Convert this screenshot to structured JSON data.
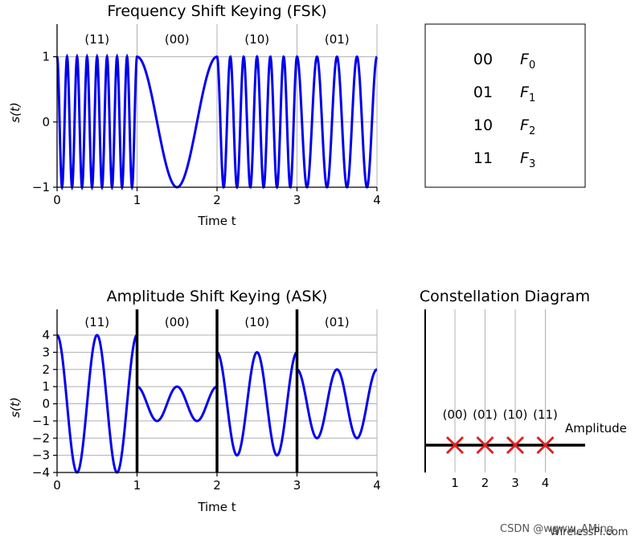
{
  "chart_data": [
    {
      "type": "line",
      "title": "Frequency Shift Keying (FSK)",
      "xlabel": "Time t",
      "ylabel": "s(t)",
      "xlim": [
        0,
        4
      ],
      "ylim": [
        -1,
        1.5
      ],
      "xticks": [
        "0",
        "1",
        "2",
        "3",
        "4"
      ],
      "yticks": [
        "−1",
        "0",
        "1"
      ],
      "grid": true,
      "segments": [
        {
          "label": "(11)",
          "t_start": 0,
          "t_end": 1,
          "amplitude": 1,
          "cycles": 8
        },
        {
          "label": "(00)",
          "t_start": 1,
          "t_end": 2,
          "amplitude": 1,
          "cycles": 1
        },
        {
          "label": "(10)",
          "t_start": 2,
          "t_end": 3,
          "amplitude": 1,
          "cycles": 6
        },
        {
          "label": "(01)",
          "t_start": 3,
          "t_end": 4,
          "amplitude": 1,
          "cycles": 4
        }
      ],
      "line_color": "#0000ee"
    },
    {
      "type": "table",
      "rows": [
        {
          "bits": "00",
          "sym": "F",
          "sub": "0"
        },
        {
          "bits": "01",
          "sym": "F",
          "sub": "1"
        },
        {
          "bits": "10",
          "sym": "F",
          "sub": "2"
        },
        {
          "bits": "11",
          "sym": "F",
          "sub": "3"
        }
      ]
    },
    {
      "type": "line",
      "title": "Amplitude Shift Keying (ASK)",
      "xlabel": "Time t",
      "ylabel": "s(t)",
      "xlim": [
        0,
        4
      ],
      "ylim": [
        -4,
        5.5
      ],
      "xticks": [
        "0",
        "1",
        "2",
        "3",
        "4"
      ],
      "yticks": [
        "−4",
        "−3",
        "−2",
        "−1",
        "0",
        "1",
        "2",
        "3",
        "4"
      ],
      "grid": true,
      "segments": [
        {
          "label": "(11)",
          "t_start": 0,
          "t_end": 1,
          "amplitude": 4,
          "cycles": 2
        },
        {
          "label": "(00)",
          "t_start": 1,
          "t_end": 2,
          "amplitude": 1,
          "cycles": 2
        },
        {
          "label": "(10)",
          "t_start": 2,
          "t_end": 3,
          "amplitude": 3,
          "cycles": 2
        },
        {
          "label": "(01)",
          "t_start": 3,
          "t_end": 4,
          "amplitude": 2,
          "cycles": 2
        }
      ],
      "line_color": "#0000ee"
    },
    {
      "type": "scatter",
      "title": "Constellation Diagram",
      "xlabel": "Amplitude",
      "x": [
        1,
        2,
        3,
        4
      ],
      "y": [
        0,
        0,
        0,
        0
      ],
      "point_labels": [
        "(00)",
        "(01)",
        "(10)",
        "(11)"
      ],
      "xticks": [
        "1",
        "2",
        "3",
        "4"
      ],
      "marker": "x",
      "marker_color": "#dd2222"
    }
  ],
  "watermark": {
    "csdn": "CSDN @wgww_AMing",
    "site": "WirelessPi.com"
  }
}
